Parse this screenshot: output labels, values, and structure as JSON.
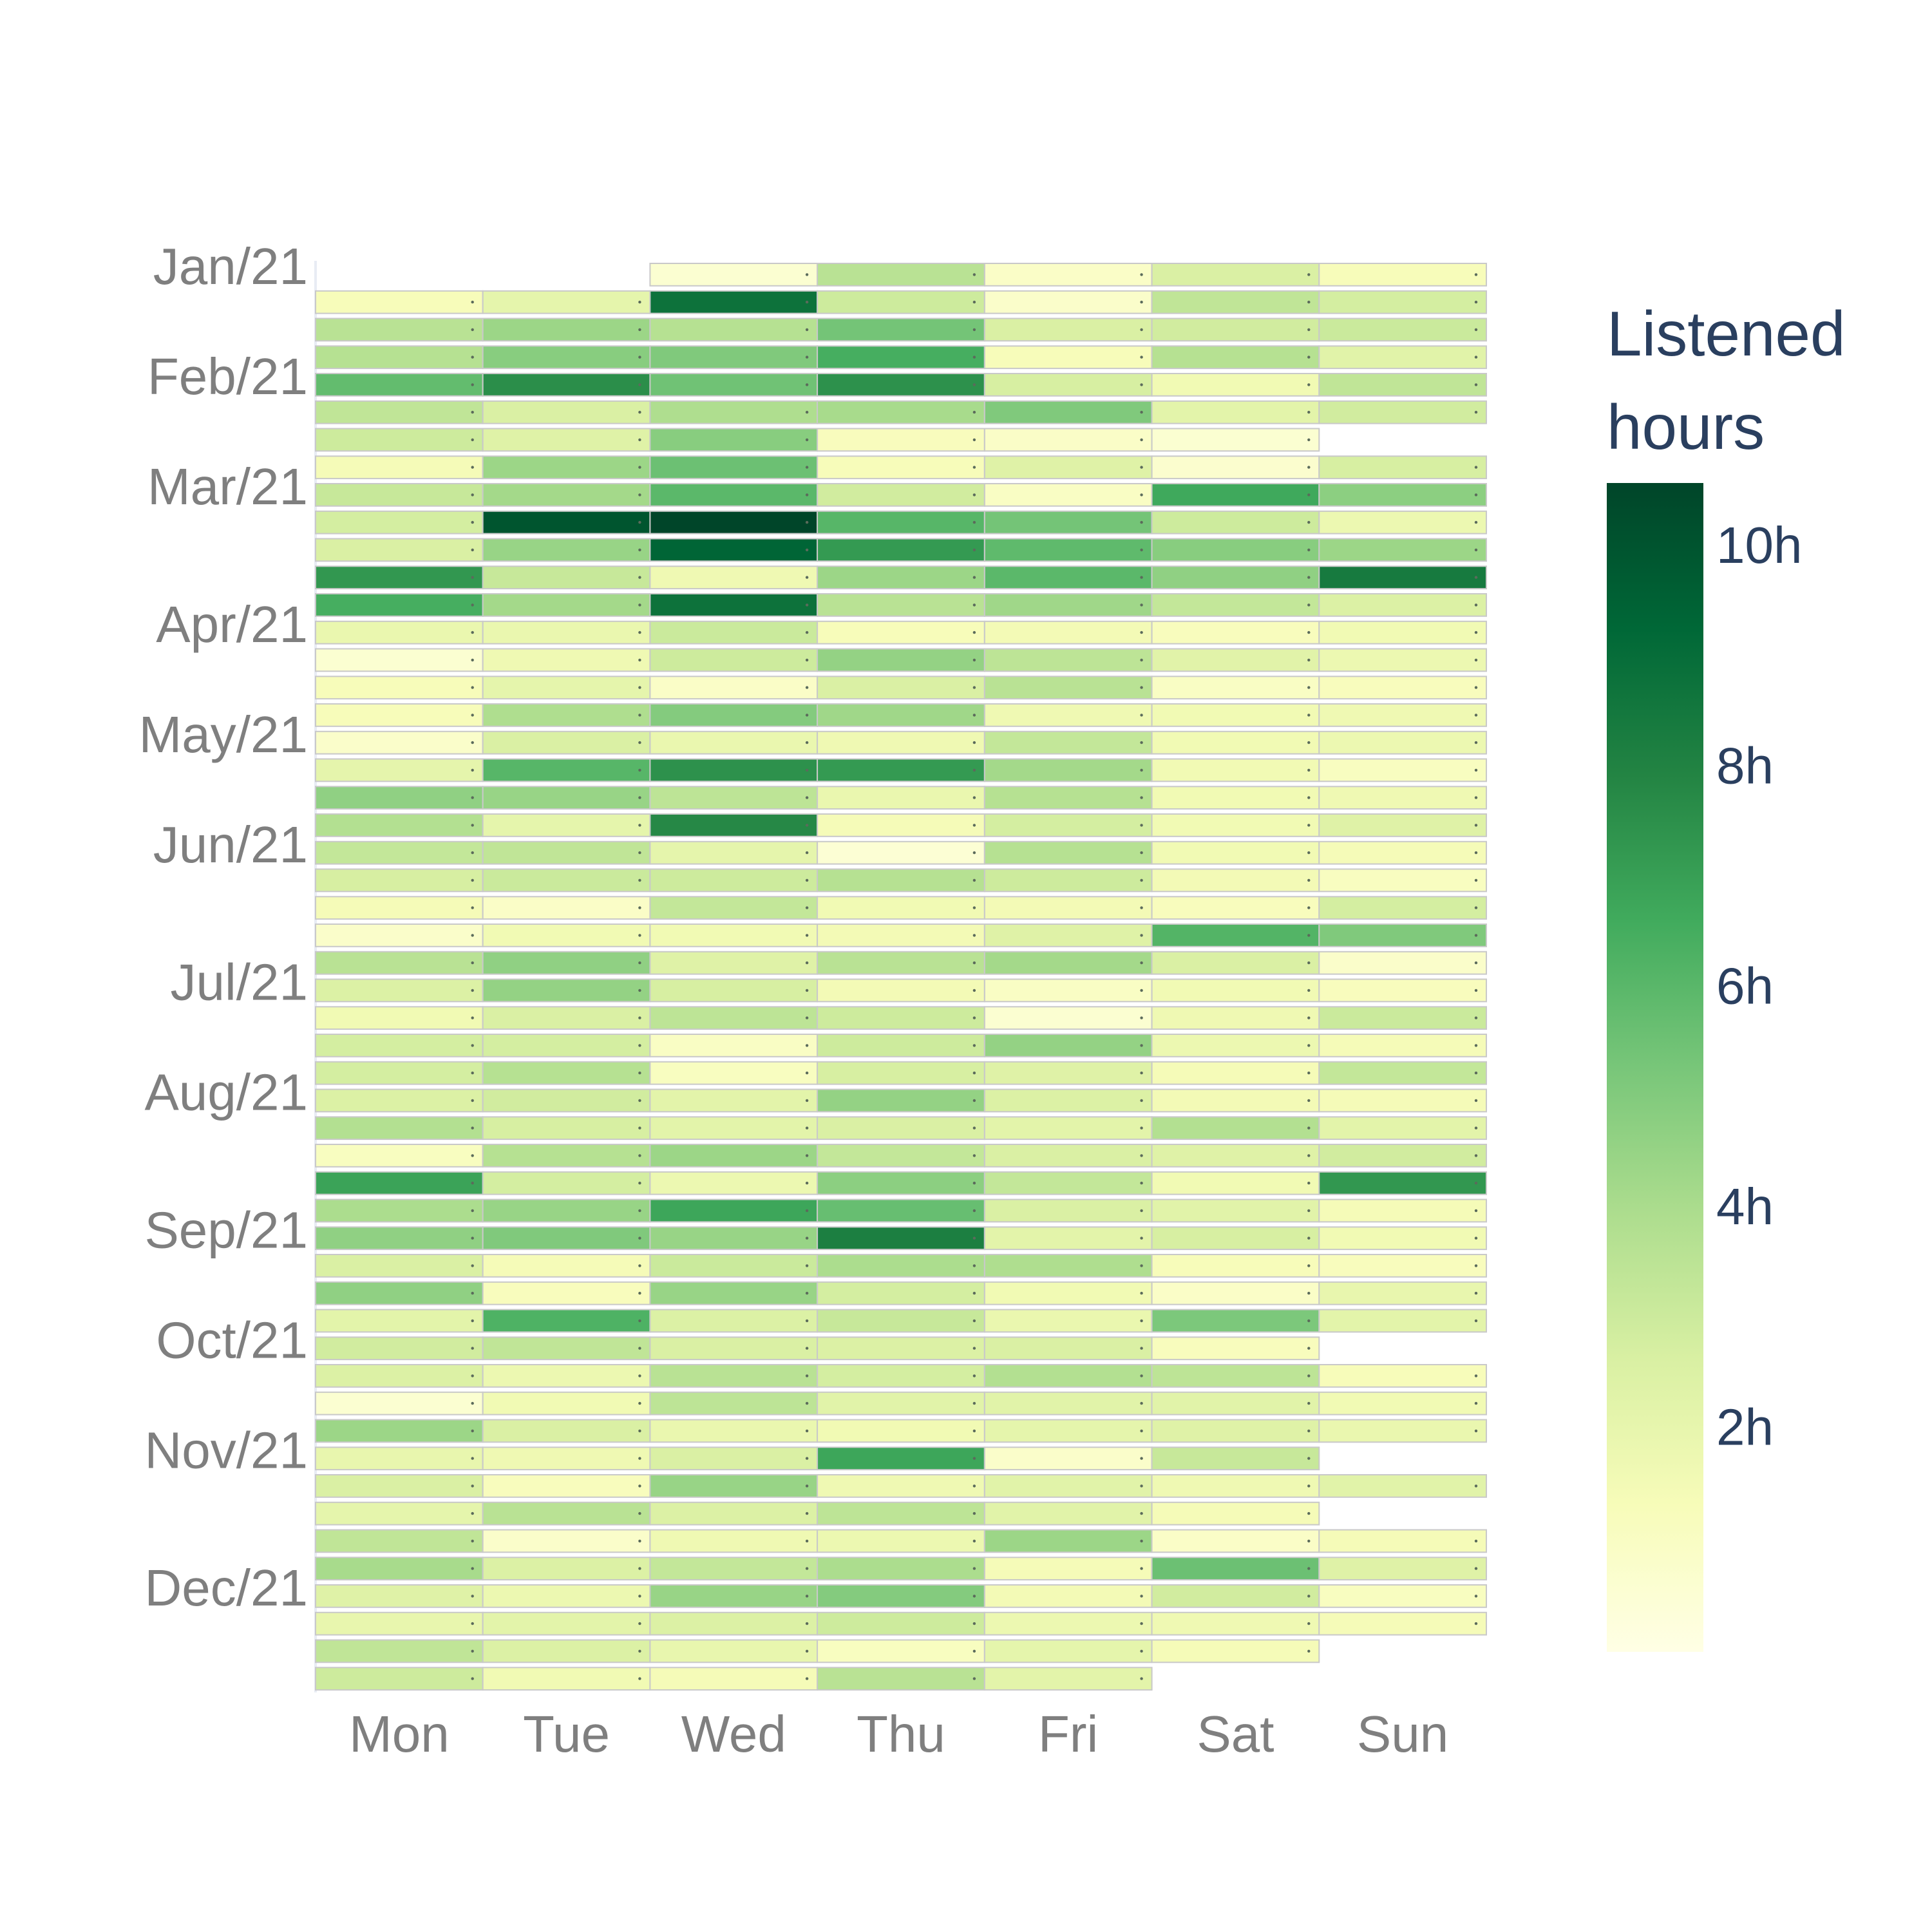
{
  "chart_data": {
    "type": "heatmap",
    "title": "",
    "xlabel": "",
    "ylabel": "",
    "x_categories": [
      "Mon",
      "Tue",
      "Wed",
      "Thu",
      "Fri",
      "Sat",
      "Sun"
    ],
    "y_tick_labels": [
      "Jan/21",
      "Feb/21",
      "Mar/21",
      "Apr/21",
      "May/21",
      "Jun/21",
      "Jul/21",
      "Aug/21",
      "Sep/21",
      "Oct/21",
      "Nov/21",
      "Dec/21"
    ],
    "week_row_of_month_tick": [
      0,
      4,
      8,
      13,
      17,
      21,
      26,
      30,
      35,
      39,
      43,
      48
    ],
    "colorbar": {
      "title_lines": [
        "Listened",
        "hours"
      ],
      "tick_labels": [
        "2h",
        "4h",
        "6h",
        "8h",
        "10h"
      ],
      "tick_values": [
        2,
        4,
        6,
        8,
        10
      ],
      "range": [
        0,
        10.6
      ],
      "colorscale": "YlGn"
    },
    "grid": false,
    "legend": "colorbar right",
    "rows": [
      [
        null,
        null,
        0.6,
        3.6,
        0.9,
        2.6,
        1.3
      ],
      [
        1.3,
        2.1,
        8.8,
        3.0,
        0.8,
        3.4,
        2.8
      ],
      [
        3.6,
        4.4,
        3.7,
        5.4,
        2.6,
        2.9,
        3.1
      ],
      [
        3.7,
        4.9,
        5.1,
        6.5,
        1.3,
        3.7,
        2.3
      ],
      [
        5.8,
        7.6,
        5.5,
        7.5,
        2.7,
        1.6,
        3.4
      ],
      [
        3.4,
        2.6,
        3.9,
        4.1,
        5.1,
        2.2,
        2.9
      ],
      [
        3.0,
        2.4,
        4.9,
        1.2,
        0.9,
        0.6,
        null
      ],
      [
        1.4,
        4.4,
        5.6,
        1.3,
        2.4,
        0.7,
        2.7
      ],
      [
        3.2,
        4.2,
        6.0,
        2.9,
        1.0,
        6.7,
        4.8
      ],
      [
        2.8,
        10.0,
        10.6,
        6.1,
        5.4,
        3.0,
        1.8
      ],
      [
        2.6,
        4.5,
        9.4,
        7.2,
        5.9,
        4.9,
        4.4
      ],
      [
        7.3,
        3.2,
        1.7,
        4.4,
        6.0,
        4.7,
        8.4
      ],
      [
        6.5,
        4.2,
        8.8,
        3.6,
        4.3,
        3.3,
        2.5
      ],
      [
        1.9,
        1.9,
        3.1,
        1.3,
        1.5,
        1.2,
        1.6
      ],
      [
        0.6,
        1.7,
        3.0,
        4.6,
        3.5,
        2.3,
        1.8
      ],
      [
        1.3,
        2.1,
        0.9,
        2.6,
        3.6,
        1.0,
        1.2
      ],
      [
        1.3,
        3.9,
        5.0,
        4.3,
        1.7,
        1.6,
        1.7
      ],
      [
        0.8,
        2.6,
        1.9,
        1.7,
        3.3,
        1.6,
        1.8
      ],
      [
        2.1,
        6.1,
        7.5,
        7.2,
        4.2,
        1.6,
        1.1
      ],
      [
        4.7,
        4.5,
        3.5,
        1.9,
        3.7,
        1.6,
        1.7
      ],
      [
        3.8,
        2.1,
        7.8,
        1.4,
        2.8,
        1.6,
        2.4
      ],
      [
        3.3,
        3.4,
        2.1,
        0.5,
        3.7,
        1.6,
        1.4
      ],
      [
        2.7,
        3.1,
        3.0,
        3.7,
        3.0,
        1.5,
        1.1
      ],
      [
        1.4,
        0.9,
        3.3,
        1.6,
        1.5,
        1.2,
        2.8
      ],
      [
        0.8,
        1.6,
        1.6,
        1.5,
        2.4,
        6.2,
        5.1
      ],
      [
        3.6,
        4.7,
        2.4,
        3.6,
        4.2,
        2.6,
        0.8
      ],
      [
        2.5,
        4.6,
        2.7,
        1.5,
        1.0,
        1.6,
        1.2
      ],
      [
        1.6,
        2.6,
        3.5,
        3.0,
        0.6,
        1.7,
        3.1
      ],
      [
        2.8,
        2.8,
        1.0,
        3.0,
        4.6,
        1.8,
        1.4
      ],
      [
        2.8,
        3.7,
        1.1,
        2.7,
        2.4,
        1.4,
        3.3
      ],
      [
        2.5,
        2.9,
        2.2,
        4.6,
        2.5,
        1.5,
        1.4
      ],
      [
        3.8,
        2.7,
        2.2,
        2.6,
        2.2,
        3.8,
        2.2
      ],
      [
        1.1,
        3.7,
        4.4,
        3.3,
        2.6,
        2.4,
        2.9
      ],
      [
        6.9,
        2.8,
        1.8,
        4.8,
        3.3,
        1.6,
        7.3
      ],
      [
        4.0,
        4.5,
        6.8,
        5.7,
        2.6,
        2.3,
        1.4
      ],
      [
        4.7,
        5.1,
        4.5,
        8.2,
        2.2,
        2.7,
        1.6
      ],
      [
        2.6,
        1.4,
        3.1,
        4.0,
        3.9,
        1.3,
        1.2
      ],
      [
        4.7,
        1.2,
        4.5,
        2.8,
        1.6,
        0.9,
        2.0
      ],
      [
        2.2,
        6.3,
        2.5,
        3.2,
        1.9,
        5.2,
        2.2
      ],
      [
        2.9,
        3.4,
        2.6,
        2.5,
        2.6,
        1.2,
        null
      ],
      [
        2.5,
        1.8,
        3.6,
        2.8,
        3.8,
        3.5,
        1.3
      ],
      [
        0.6,
        1.6,
        3.5,
        2.3,
        2.3,
        2.3,
        1.6
      ],
      [
        4.4,
        2.6,
        1.9,
        1.6,
        2.1,
        2.4,
        1.9
      ],
      [
        2.0,
        1.7,
        2.6,
        6.8,
        0.8,
        3.2,
        null
      ],
      [
        2.6,
        1.2,
        4.5,
        1.7,
        2.3,
        1.7,
        2.3
      ],
      [
        2.1,
        3.6,
        2.5,
        3.5,
        2.3,
        1.4,
        null
      ],
      [
        3.4,
        0.8,
        1.7,
        1.8,
        4.4,
        0.9,
        1.4
      ],
      [
        4.1,
        2.5,
        3.3,
        4.0,
        1.4,
        5.6,
        2.4
      ],
      [
        2.4,
        1.8,
        4.5,
        5.0,
        1.5,
        2.9,
        1.1
      ],
      [
        2.0,
        2.2,
        2.5,
        3.0,
        1.8,
        1.7,
        1.4
      ],
      [
        3.4,
        2.5,
        2.0,
        1.1,
        2.1,
        1.4,
        null
      ],
      [
        3.0,
        1.6,
        1.4,
        3.6,
        2.2,
        null,
        null
      ]
    ]
  }
}
